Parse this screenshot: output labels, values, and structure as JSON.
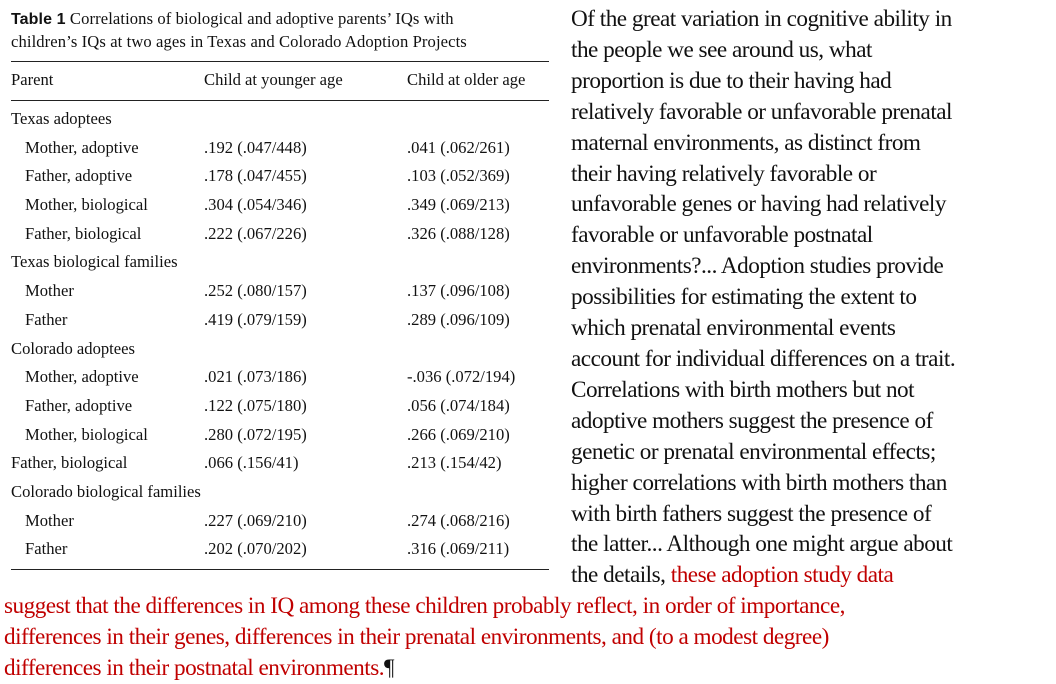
{
  "table": {
    "caption_label": "Table 1",
    "caption_line1": "Correlations of biological and adoptive parents’ IQs with",
    "caption_line2": "children’s IQs at two ages in Texas and Colorado Adoption Projects",
    "headers": {
      "parent": "Parent",
      "younger": "Child at younger age",
      "older": "Child at older age"
    },
    "groups": [
      {
        "label": "Texas adoptees",
        "rows": [
          {
            "parent": "Mother, adoptive",
            "younger": ".192 (.047/448)",
            "older": ".041 (.062/261)"
          },
          {
            "parent": "Father, adoptive",
            "younger": ".178 (.047/455)",
            "older": ".103 (.052/369)"
          },
          {
            "parent": "Mother, biological",
            "younger": ".304 (.054/346)",
            "older": ".349 (.069/213)"
          },
          {
            "parent": "Father, biological",
            "younger": ".222 (.067/226)",
            "older": ".326 (.088/128)"
          }
        ]
      },
      {
        "label": "Texas biological families",
        "rows": [
          {
            "parent": "Mother",
            "younger": ".252 (.080/157)",
            "older": ".137 (.096/108)"
          },
          {
            "parent": "Father",
            "younger": ".419 (.079/159)",
            "older": ".289 (.096/109)"
          }
        ]
      },
      {
        "label": "Colorado adoptees",
        "rows": [
          {
            "parent": "Mother, adoptive",
            "younger": ".021 (.073/186)",
            "older": "-.036 (.072/194)"
          },
          {
            "parent": "Father, adoptive",
            "younger": ".122 (.075/180)",
            "older": ".056 (.074/184)"
          },
          {
            "parent": "Mother, biological",
            "younger": ".280 (.072/195)",
            "older": ".266 (.069/210)"
          },
          {
            "parent": "Father, biological",
            "younger": ".066 (.156/41)",
            "older": ".213 (.154/42)"
          }
        ]
      },
      {
        "label": "Colorado biological families",
        "rows": [
          {
            "parent": "Mother",
            "younger": ".227 (.069/210)",
            "older": ".274 (.068/216)"
          },
          {
            "parent": "Father",
            "younger": ".202 (.070/202)",
            "older": ".316 (.069/211)"
          }
        ]
      }
    ]
  },
  "paragraph": {
    "lines": [
      "Of the great variation in cognitive ability in",
      "the people we see around us, what",
      "proportion is due to their having had",
      "relatively favorable or unfavorable prenatal",
      "maternal environments, as distinct from",
      "their having relatively favorable or",
      "unfavorable genes or having had relatively",
      "favorable or unfavorable postnatal",
      "environments?... Adoption studies provide",
      "possibilities for estimating the extent to",
      "which prenatal environmental events",
      "account for individual differences on a trait.",
      "Correlations with birth mothers but not",
      "adoptive mothers suggest the presence of",
      "genetic or prenatal environmental effects;",
      "higher correlations with birth mothers than",
      "with birth fathers suggest the presence of",
      "the latter... Although one might argue about"
    ],
    "last_line_black": "the details, ",
    "last_line_red": "these adoption study data",
    "red_lines": [
      "suggest that the differences in IQ among these children probably reflect, in order of importance,",
      "differences in their genes, differences in their prenatal environments, and (to a modest degree)"
    ],
    "final_red": "differences in their postnatal environments.",
    "pilcrow": "¶"
  },
  "colors": {
    "text": "#111111",
    "highlight": "#c00000"
  }
}
